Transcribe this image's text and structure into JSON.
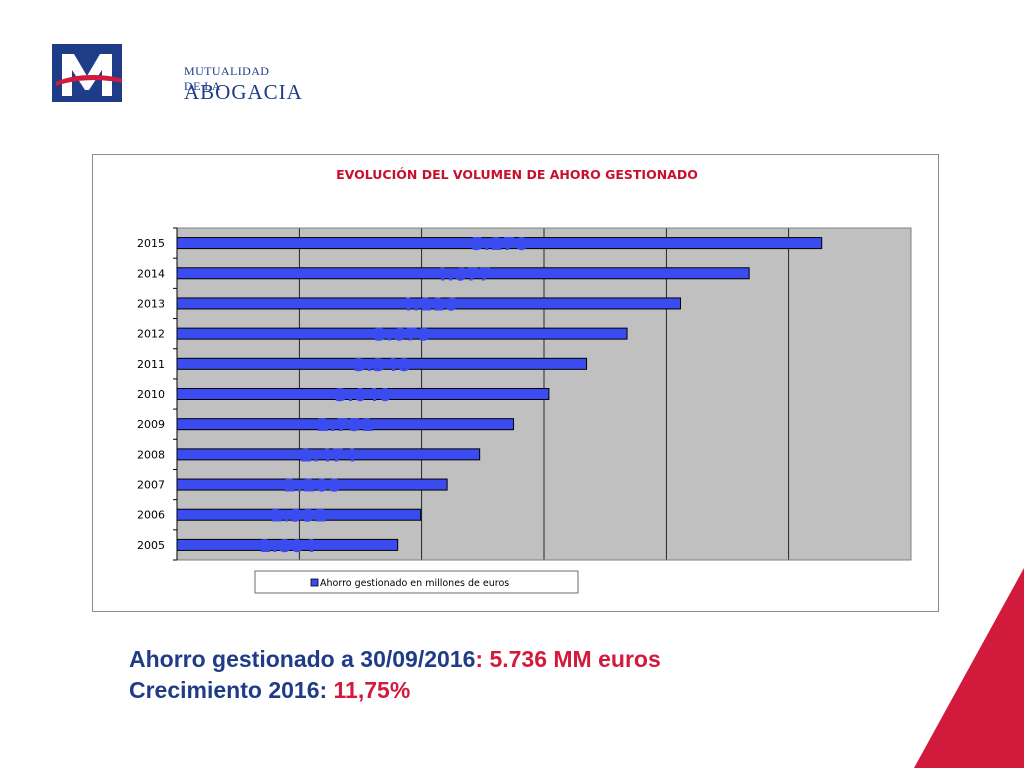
{
  "logo": {
    "line1": "MUTUALIDAD DE LA",
    "line2": "ABOGACIA"
  },
  "colors": {
    "brand_blue": "#1f3c88",
    "brand_red": "#d21a3c",
    "bar_fill": "#3a4cf0",
    "plot_bg": "#c0c0c0",
    "title_red": "#c8102e"
  },
  "chart_data": {
    "type": "bar",
    "orientation": "horizontal",
    "title": "EVOLUCIÓN DEL VOLUMEN DE AHORO GESTIONADO",
    "categories": [
      "2015",
      "2014",
      "2013",
      "2012",
      "2011",
      "2010",
      "2009",
      "2008",
      "2007",
      "2006",
      "2005"
    ],
    "series": [
      {
        "name": "Ahorro gestionado en millones de euros",
        "values": [
          5270,
          4677,
          4116,
          3679,
          3348,
          3040,
          2751,
          2474,
          2208,
          1992,
          1804
        ]
      }
    ],
    "data_labels": [
      "5.270",
      "4.677",
      "4.116",
      "3.679",
      "3.348",
      "3.040",
      "2.751",
      "2.474",
      "2.208",
      "1.992",
      "1.804"
    ],
    "xlim": [
      0,
      6000
    ],
    "grid": true,
    "legend_position": "bottom"
  },
  "summary": {
    "line1_prefix": "Ahorro gestionado a 30/09/2016",
    "line1_value": ": 5.736 MM euros",
    "line2_prefix": "Crecimiento 2016: ",
    "line2_value": "11,75%"
  }
}
